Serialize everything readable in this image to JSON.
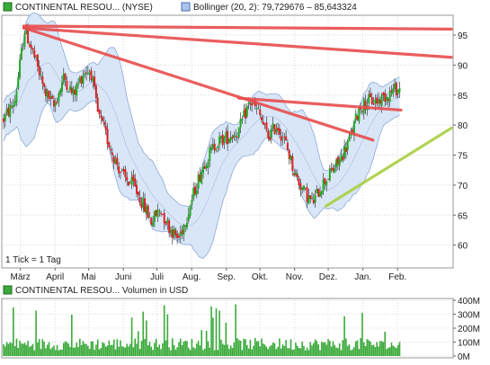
{
  "chart_data": [
    {
      "type": "candlestick",
      "title": "CONTINENTAL RESOU... (NYSE)",
      "indicator": "Bollinger (20, 2): 79,729676 – 85,643324",
      "note": "1 Tick = 1 Tag",
      "x_tick_labels": [
        "März",
        "April",
        "Mai",
        "Juni",
        "Juli",
        "Aug.",
        "Sep.",
        "Okt.",
        "Nov.",
        "Dez.",
        "Jan.",
        "Feb."
      ],
      "x_tick_days": [
        15,
        46,
        76,
        107,
        137,
        168,
        199,
        229,
        260,
        290,
        321,
        352
      ],
      "y_tick_values": [
        60,
        65,
        70,
        75,
        80,
        85,
        90,
        95
      ],
      "ylim": [
        56.5,
        98
      ],
      "price_path": [
        [
          0,
          81
        ],
        [
          10,
          84
        ],
        [
          19,
          96
        ],
        [
          28,
          91
        ],
        [
          36,
          86
        ],
        [
          45,
          83
        ],
        [
          54,
          88
        ],
        [
          62,
          85
        ],
        [
          72,
          89
        ],
        [
          78,
          89
        ],
        [
          84,
          82
        ],
        [
          92,
          78
        ],
        [
          100,
          74
        ],
        [
          108,
          71
        ],
        [
          116,
          70
        ],
        [
          124,
          67
        ],
        [
          132,
          64
        ],
        [
          140,
          66
        ],
        [
          148,
          63
        ],
        [
          156,
          61
        ],
        [
          164,
          65
        ],
        [
          172,
          70
        ],
        [
          180,
          74
        ],
        [
          190,
          77
        ],
        [
          200,
          78
        ],
        [
          210,
          79
        ],
        [
          220,
          84
        ],
        [
          228,
          82
        ],
        [
          236,
          78
        ],
        [
          244,
          80
        ],
        [
          252,
          77
        ],
        [
          260,
          72
        ],
        [
          268,
          69
        ],
        [
          276,
          67
        ],
        [
          284,
          70
        ],
        [
          292,
          72
        ],
        [
          300,
          74
        ],
        [
          310,
          78
        ],
        [
          318,
          83
        ],
        [
          326,
          84
        ],
        [
          334,
          84
        ],
        [
          342,
          85
        ],
        [
          350,
          86
        ]
      ],
      "trend_lines": [
        {
          "color": "#e84d4d",
          "from": [
            18,
            96.5
          ],
          "to": [
            400,
            96
          ]
        },
        {
          "color": "#e84d4d",
          "from": [
            18,
            96.2
          ],
          "to": [
            400,
            91.3
          ]
        },
        {
          "color": "#e84d4d",
          "from": [
            18,
            96.2
          ],
          "to": [
            330,
            77.5
          ]
        },
        {
          "color": "#e84d4d",
          "from": [
            210,
            84.5
          ],
          "to": [
            355,
            82.5
          ]
        },
        {
          "color": "#a8d042",
          "from": [
            288,
            66.5
          ],
          "to": [
            400,
            79.5
          ]
        }
      ],
      "colors": {
        "up": "#22aa22",
        "down": "#dd2222",
        "band_fill": "#d8e6f8",
        "band_line": "#8ea9d8",
        "frame": "#888888",
        "grid": "#d8d8d8"
      }
    },
    {
      "type": "bar",
      "title": "CONTINENTAL RESOU... Volumen in USD",
      "y_tick_labels": [
        "0M",
        "100M",
        "200M",
        "300M",
        "400M"
      ],
      "y_tick_values": [
        0,
        100,
        200,
        300,
        400
      ],
      "ylim": [
        0,
        400
      ],
      "colors": {
        "bar": "#3aaa3a"
      }
    }
  ]
}
